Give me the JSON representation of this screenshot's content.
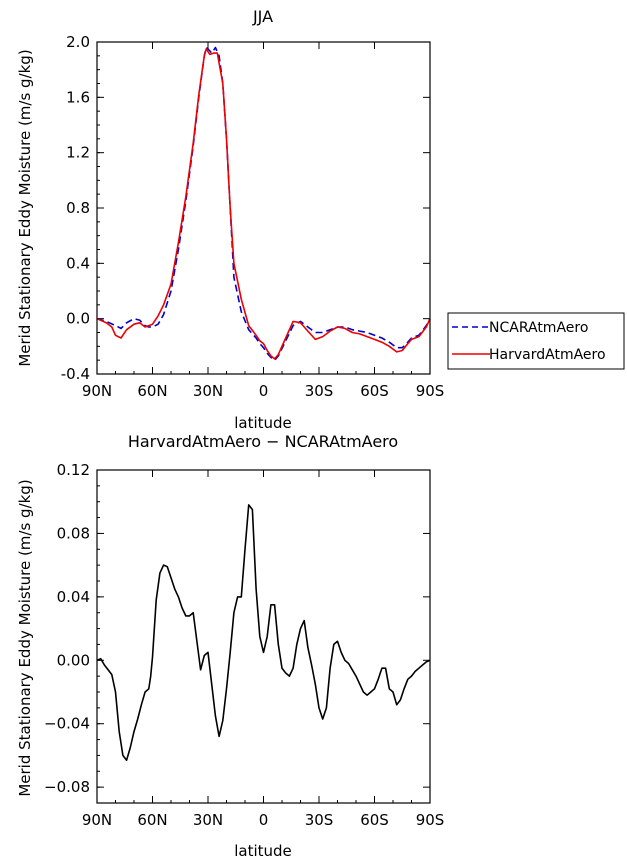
{
  "chart_data": [
    {
      "type": "line",
      "title": "JJA",
      "xlabel": "latitude",
      "ylabel": "Merid Stationary Eddy Moisture (m/s g/kg)",
      "x_ticks": [
        90,
        60,
        30,
        0,
        -30,
        -60,
        -90
      ],
      "x_tick_labels": [
        "90N",
        "60N",
        "30N",
        "0",
        "30S",
        "60S",
        "90S"
      ],
      "xlim": [
        90,
        -90
      ],
      "ylim": [
        -0.4,
        2.0
      ],
      "y_ticks": [
        -0.4,
        0.0,
        0.4,
        0.8,
        1.2,
        1.6,
        2.0
      ],
      "y_tick_labels": [
        "-0.4",
        "0.0",
        "0.4",
        "0.8",
        "1.2",
        "1.6",
        "2.0"
      ],
      "legend_position": "outside-right",
      "series": [
        {
          "name": "NCARAtmAero",
          "color": "#0000cc",
          "style": "dashed",
          "x": [
            90,
            85,
            80,
            77,
            74,
            70,
            67,
            64,
            62,
            60,
            57,
            54,
            50,
            46,
            42,
            38,
            35,
            32,
            31,
            30,
            28,
            27,
            26,
            24,
            22,
            20,
            18,
            16,
            12,
            8,
            4,
            2,
            0,
            -2,
            -4,
            -6,
            -8,
            -12,
            -16,
            -20,
            -24,
            -28,
            -32,
            -36,
            -40,
            -44,
            -48,
            -52,
            -56,
            -60,
            -64,
            -68,
            -72,
            -75,
            -78,
            -80,
            -84,
            -88,
            -90
          ],
          "y": [
            0.0,
            -0.02,
            -0.05,
            -0.07,
            -0.03,
            0.0,
            -0.01,
            -0.05,
            -0.06,
            -0.06,
            -0.04,
            0.03,
            0.2,
            0.5,
            0.85,
            1.25,
            1.6,
            1.9,
            1.96,
            1.95,
            1.92,
            1.94,
            1.96,
            1.9,
            1.7,
            1.3,
            0.8,
            0.3,
            0.05,
            -0.08,
            -0.14,
            -0.18,
            -0.21,
            -0.25,
            -0.28,
            -0.3,
            -0.27,
            -0.16,
            -0.05,
            -0.02,
            -0.06,
            -0.1,
            -0.1,
            -0.08,
            -0.06,
            -0.06,
            -0.08,
            -0.09,
            -0.1,
            -0.12,
            -0.14,
            -0.17,
            -0.21,
            -0.21,
            -0.17,
            -0.14,
            -0.12,
            -0.05,
            0.0
          ]
        },
        {
          "name": "HarvardAtmAero",
          "color": "#ee0000",
          "style": "solid",
          "x": [
            90,
            85,
            82,
            80,
            77,
            74,
            70,
            67,
            64,
            62,
            60,
            57,
            54,
            50,
            46,
            42,
            38,
            35,
            32,
            31,
            30,
            29,
            27,
            25,
            22,
            20,
            18,
            16,
            12,
            8,
            4,
            2,
            0,
            -2,
            -4,
            -6,
            -8,
            -12,
            -16,
            -20,
            -24,
            -28,
            -32,
            -36,
            -40,
            -44,
            -48,
            -52,
            -56,
            -60,
            -64,
            -68,
            -72,
            -75,
            -78,
            -80,
            -84,
            -88,
            -90
          ],
          "y": [
            0.0,
            -0.03,
            -0.06,
            -0.12,
            -0.14,
            -0.08,
            -0.04,
            -0.03,
            -0.06,
            -0.05,
            -0.04,
            0.02,
            0.1,
            0.25,
            0.55,
            0.88,
            1.27,
            1.62,
            1.9,
            1.95,
            1.93,
            1.91,
            1.92,
            1.92,
            1.7,
            1.3,
            0.8,
            0.4,
            0.14,
            -0.05,
            -0.12,
            -0.16,
            -0.18,
            -0.23,
            -0.27,
            -0.29,
            -0.26,
            -0.14,
            -0.02,
            -0.03,
            -0.09,
            -0.15,
            -0.13,
            -0.09,
            -0.06,
            -0.07,
            -0.1,
            -0.11,
            -0.13,
            -0.15,
            -0.17,
            -0.2,
            -0.24,
            -0.23,
            -0.18,
            -0.15,
            -0.13,
            -0.06,
            0.0
          ]
        }
      ]
    },
    {
      "type": "line",
      "title": "HarvardAtmAero − NCARAtmAero",
      "xlabel": "latitude",
      "ylabel": "Merid Stationary Eddy Moisture (m/s g/kg)",
      "x_ticks": [
        90,
        60,
        30,
        0,
        -30,
        -60,
        -90
      ],
      "x_tick_labels": [
        "90N",
        "60N",
        "30N",
        "0",
        "30S",
        "60S",
        "90S"
      ],
      "xlim": [
        90,
        -90
      ],
      "ylim": [
        -0.09,
        0.12
      ],
      "y_ticks": [
        -0.08,
        -0.04,
        0.0,
        0.04,
        0.08,
        0.12
      ],
      "y_tick_labels": [
        "−0.08",
        "−0.04",
        "0.00",
        "0.04",
        "0.08",
        "0.12"
      ],
      "series": [
        {
          "color": "#000000",
          "style": "solid",
          "x": [
            90,
            88,
            86,
            84,
            82,
            80,
            78,
            76,
            74,
            72,
            70,
            68,
            66,
            64,
            62,
            61,
            60,
            58,
            56,
            54,
            52,
            50,
            48,
            46,
            44,
            42,
            40,
            38,
            36,
            34,
            32,
            30,
            28,
            26,
            24,
            22,
            20,
            18,
            16,
            14,
            12,
            10,
            8,
            6,
            4,
            2,
            0,
            -2,
            -4,
            -6,
            -8,
            -10,
            -12,
            -14,
            -16,
            -18,
            -20,
            -22,
            -24,
            -26,
            -28,
            -30,
            -32,
            -34,
            -36,
            -38,
            -40,
            -42,
            -44,
            -46,
            -48,
            -50,
            -52,
            -54,
            -56,
            -58,
            -60,
            -62,
            -64,
            -66,
            -68,
            -70,
            -72,
            -74,
            -76,
            -78,
            -80,
            -82,
            -84,
            -86,
            -88,
            -90
          ],
          "y": [
            0.0,
            0.001,
            -0.003,
            -0.006,
            -0.009,
            -0.02,
            -0.045,
            -0.06,
            -0.063,
            -0.055,
            -0.045,
            -0.037,
            -0.028,
            -0.02,
            -0.018,
            -0.01,
            0.002,
            0.038,
            0.055,
            0.06,
            0.059,
            0.052,
            0.045,
            0.04,
            0.033,
            0.028,
            0.028,
            0.03,
            0.012,
            -0.006,
            0.003,
            0.005,
            -0.015,
            -0.035,
            -0.048,
            -0.038,
            -0.018,
            0.005,
            0.03,
            0.04,
            0.04,
            0.07,
            0.098,
            0.095,
            0.045,
            0.015,
            0.005,
            0.015,
            0.035,
            0.035,
            0.01,
            -0.005,
            -0.008,
            -0.01,
            -0.005,
            0.01,
            0.02,
            0.025,
            0.008,
            -0.003,
            -0.015,
            -0.03,
            -0.037,
            -0.03,
            -0.005,
            0.01,
            0.012,
            0.005,
            0.0,
            -0.002,
            -0.006,
            -0.01,
            -0.015,
            -0.02,
            -0.022,
            -0.02,
            -0.018,
            -0.012,
            -0.005,
            -0.005,
            -0.018,
            -0.02,
            -0.028,
            -0.025,
            -0.018,
            -0.012,
            -0.01,
            -0.007,
            -0.005,
            -0.003,
            -0.001,
            0.0
          ]
        }
      ]
    }
  ]
}
